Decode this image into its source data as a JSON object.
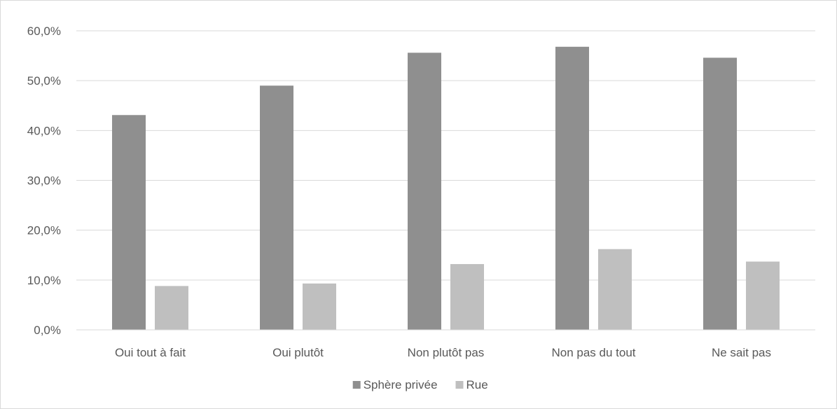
{
  "chart_data": {
    "type": "bar",
    "title": "",
    "xlabel": "",
    "ylabel": "",
    "categories": [
      "Oui tout à fait",
      "Oui plutôt",
      "Non plutôt pas",
      "Non pas du tout",
      "Ne sait pas"
    ],
    "series": [
      {
        "name": "Sphère privée",
        "color": "#8f8f8f",
        "values": [
          43.1,
          49.0,
          55.6,
          56.8,
          54.6
        ]
      },
      {
        "name": "Rue",
        "color": "#bfbfbf",
        "values": [
          8.8,
          9.3,
          13.2,
          16.2,
          13.7
        ]
      }
    ],
    "ylim": [
      0,
      60
    ],
    "yticks": [
      "0,0%",
      "10,0%",
      "20,0%",
      "30,0%",
      "40,0%",
      "50,0%",
      "60,0%"
    ],
    "grid": true,
    "legend_position": "bottom",
    "gridline_color": "#d9d9d9"
  }
}
